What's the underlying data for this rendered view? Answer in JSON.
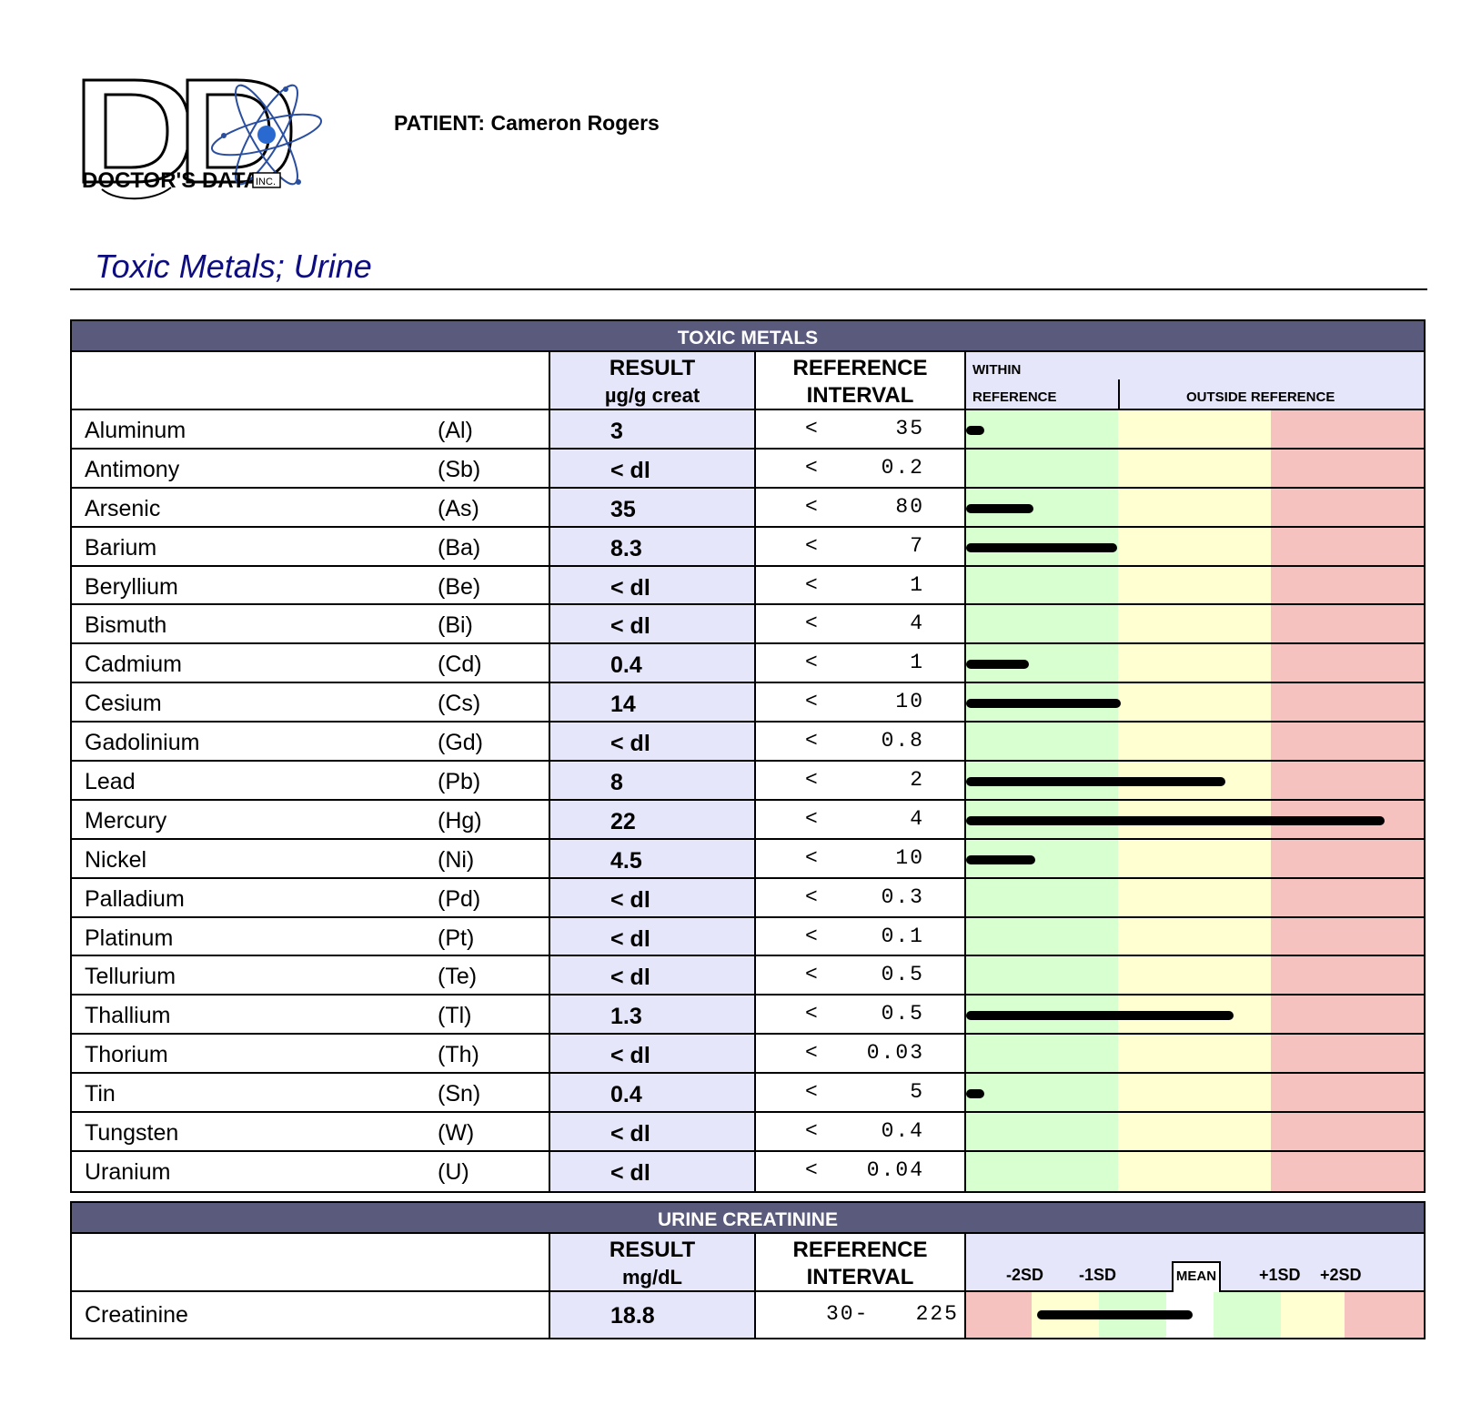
{
  "header": {
    "logo_text": "DOCTOR'S DATA INC.",
    "patient_label": "PATIENT:",
    "patient_name": "Cameron Rogers"
  },
  "page_title": "Toxic Metals; Urine",
  "toxic_table": {
    "section_title": "TOXIC METALS",
    "result_header": "RESULT",
    "result_unit": "µg/g creat",
    "reference_header": "REFERENCE",
    "interval_header": "INTERVAL",
    "within_line1": "WITHIN",
    "within_line2": "REFERENCE",
    "outside_label": "OUTSIDE REFERENCE",
    "rows": [
      {
        "name": "Aluminum",
        "symbol": "(Al)",
        "result": "3",
        "ref_op": "<",
        "ref": "35",
        "bar_fraction": 0.04
      },
      {
        "name": "Antimony",
        "symbol": "(Sb)",
        "result": "< dl",
        "ref_op": "<",
        "ref": "0.2",
        "bar_fraction": 0
      },
      {
        "name": "Arsenic",
        "symbol": "(As)",
        "result": "35",
        "ref_op": "<",
        "ref": "80",
        "bar_fraction": 0.16
      },
      {
        "name": "Barium",
        "symbol": "(Ba)",
        "result": "8.3",
        "ref_op": "<",
        "ref": "7",
        "bar_fraction": 0.36
      },
      {
        "name": "Beryllium",
        "symbol": "(Be)",
        "result": "< dl",
        "ref_op": "<",
        "ref": "1",
        "bar_fraction": 0
      },
      {
        "name": "Bismuth",
        "symbol": "(Bi)",
        "result": "< dl",
        "ref_op": "<",
        "ref": "4",
        "bar_fraction": 0
      },
      {
        "name": "Cadmium",
        "symbol": "(Cd)",
        "result": "0.4",
        "ref_op": "<",
        "ref": "1",
        "bar_fraction": 0.15
      },
      {
        "name": "Cesium",
        "symbol": "(Cs)",
        "result": "14",
        "ref_op": "<",
        "ref": "10",
        "bar_fraction": 0.37
      },
      {
        "name": "Gadolinium",
        "symbol": "(Gd)",
        "result": "< dl",
        "ref_op": "<",
        "ref": "0.8",
        "bar_fraction": 0
      },
      {
        "name": "Lead",
        "symbol": "(Pb)",
        "result": "8",
        "ref_op": "<",
        "ref": "2",
        "bar_fraction": 0.62
      },
      {
        "name": "Mercury",
        "symbol": "(Hg)",
        "result": "22",
        "ref_op": "<",
        "ref": "4",
        "bar_fraction": 1.0
      },
      {
        "name": "Nickel",
        "symbol": "(Ni)",
        "result": "4.5",
        "ref_op": "<",
        "ref": "10",
        "bar_fraction": 0.165
      },
      {
        "name": "Palladium",
        "symbol": "(Pd)",
        "result": "< dl",
        "ref_op": "<",
        "ref": "0.3",
        "bar_fraction": 0
      },
      {
        "name": "Platinum",
        "symbol": "(Pt)",
        "result": "< dl",
        "ref_op": "<",
        "ref": "0.1",
        "bar_fraction": 0
      },
      {
        "name": "Tellurium",
        "symbol": "(Te)",
        "result": "< dl",
        "ref_op": "<",
        "ref": "0.5",
        "bar_fraction": 0
      },
      {
        "name": "Thallium",
        "symbol": "(Tl)",
        "result": "1.3",
        "ref_op": "<",
        "ref": "0.5",
        "bar_fraction": 0.64
      },
      {
        "name": "Thorium",
        "symbol": "(Th)",
        "result": "< dl",
        "ref_op": "<",
        "ref": "0.03",
        "bar_fraction": 0
      },
      {
        "name": "Tin",
        "symbol": "(Sn)",
        "result": "0.4",
        "ref_op": "<",
        "ref": "5",
        "bar_fraction": 0.04
      },
      {
        "name": "Tungsten",
        "symbol": "(W)",
        "result": "< dl",
        "ref_op": "<",
        "ref": "0.4",
        "bar_fraction": 0
      },
      {
        "name": "Uranium",
        "symbol": "(U)",
        "result": "< dl",
        "ref_op": "<",
        "ref": "0.04",
        "bar_fraction": 0
      }
    ]
  },
  "creatinine_table": {
    "section_title": "URINE CREATININE",
    "result_header": "RESULT",
    "result_unit": "mg/dL",
    "reference_header": "REFERENCE",
    "interval_header": "INTERVAL",
    "sd_labels": {
      "minus2": "-2SD",
      "minus1": "-1SD",
      "mean": "MEAN",
      "plus1": "+1SD",
      "plus2": "+2SD"
    },
    "row": {
      "name": "Creatinine",
      "result": "18.8",
      "ref_low": "30-",
      "ref_high": "225",
      "bar_start_fraction": 0.16,
      "bar_end_fraction": 0.51
    }
  },
  "colors": {
    "section_bar": "#5a5a7d",
    "result_column": "#e6e6fa",
    "within_green": "#d8ffd0",
    "outside_yellow": "#ffffd2",
    "outside_red": "#f5c2c0",
    "title_blue": "#0d0d80"
  }
}
